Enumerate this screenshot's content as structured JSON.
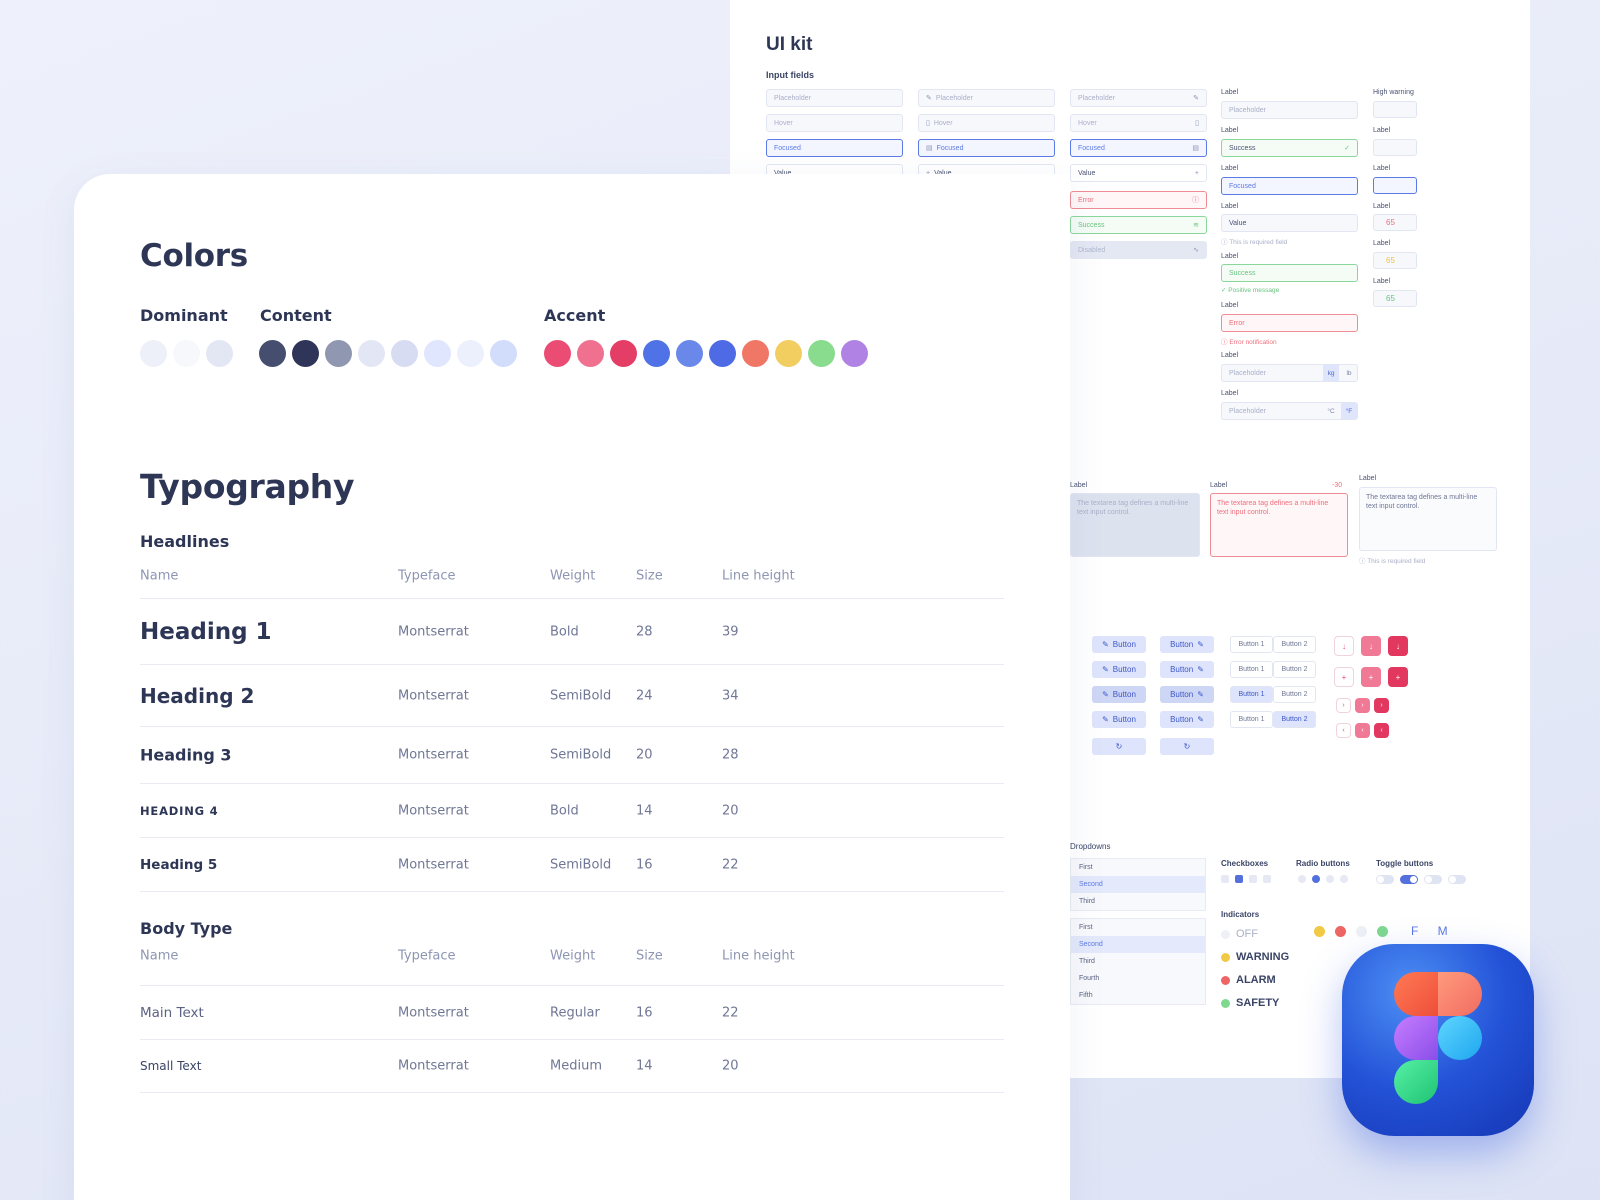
{
  "ui_kit": {
    "title": "UI kit",
    "input_fields_label": "Input fields",
    "col1": [
      "Placeholder",
      "Hover",
      "Focused",
      "Value"
    ],
    "col2": [
      "Placeholder",
      "Hover",
      "Focused",
      "Value"
    ],
    "col3": [
      "Placeholder",
      "Hover",
      "Focused",
      "Value",
      "Error",
      "Success",
      "Disabled"
    ],
    "labeled": {
      "label": "Label",
      "fields": [
        "Placeholder",
        "Success",
        "Focused",
        "Value",
        "Success",
        "Error"
      ],
      "required_hint": "This is required field",
      "positive_hint": "Positive message",
      "error_hint": "Error notification",
      "unit_placeholder": "Placeholder",
      "units1": [
        "kg",
        "lb"
      ],
      "units2": [
        "°C",
        "°F"
      ]
    },
    "high_warning": "High warning",
    "numbers": [
      "65",
      "65",
      "65"
    ],
    "textareas": {
      "text": "The textarea tag defines a multi-line text input control.",
      "disabled_text": "The textarea tag defines a multi-line text input control.",
      "counter": "-30",
      "required_hint": "This is required field"
    },
    "buttons": {
      "label": "Button",
      "group1": "Button 1",
      "group2": "Button 2",
      "spinner": "↻"
    },
    "dropdowns": {
      "title": "Dropdowns",
      "list1": [
        "First",
        "Second",
        "Third"
      ],
      "list2": [
        "First",
        "Second",
        "Third",
        "Fourth",
        "Fifth"
      ]
    },
    "checkboxes_title": "Checkboxes",
    "radio_title": "Radio buttons",
    "toggle_title": "Toggle buttons",
    "indicators": {
      "title": "Indicators",
      "off": "OFF",
      "warning": "WARNING",
      "alarm": "ALARM",
      "safety": "SAFETY",
      "letters": "F M"
    }
  },
  "colors": {
    "title": "Colors",
    "dominant_label": "Dominant",
    "content_label": "Content",
    "accent_label": "Accent",
    "dominant": [
      "#edf0f8",
      "#f7f8fc",
      "#e3e7f4"
    ],
    "content": [
      "#454e6f",
      "#2f3558",
      "#8f97b1",
      "#e3e7f5",
      "#d8dcf2",
      "#dfe6fd",
      "#ecf0fd",
      "#d2dcfb"
    ],
    "accent": [
      "#eb4c73",
      "#f07090",
      "#e53e66",
      "#4f73e6",
      "#6a87ea",
      "#4e6ae4",
      "#f07766",
      "#f2cd5f",
      "#89dc8e",
      "#b082e4"
    ]
  },
  "typography": {
    "title": "Typography",
    "headlines_label": "Headlines",
    "body_label": "Body Type",
    "columns": [
      "Name",
      "Typeface",
      "Weight",
      "Size",
      "Line height"
    ],
    "headlines": [
      {
        "name": "Heading 1",
        "typeface": "Montserrat",
        "weight": "Bold",
        "size": "28",
        "line_height": "39"
      },
      {
        "name": "Heading 2",
        "typeface": "Montserrat",
        "weight": "SemiBold",
        "size": "24",
        "line_height": "34"
      },
      {
        "name": "Heading 3",
        "typeface": "Montserrat",
        "weight": "SemiBold",
        "size": "20",
        "line_height": "28"
      },
      {
        "name": "HEADING 4",
        "typeface": "Montserrat",
        "weight": "Bold",
        "size": "14",
        "line_height": "20"
      },
      {
        "name": "Heading 5",
        "typeface": "Montserrat",
        "weight": "SemiBold",
        "size": "16",
        "line_height": "22"
      }
    ],
    "body": [
      {
        "name": "Main Text",
        "typeface": "Montserrat",
        "weight": "Regular",
        "size": "16",
        "line_height": "22"
      },
      {
        "name": "Small Text",
        "typeface": "Montserrat",
        "weight": "Medium",
        "size": "14",
        "line_height": "20"
      }
    ]
  },
  "app_icon": {
    "name": "figma-icon",
    "colors": [
      "#f26b4b",
      "#f47f6a",
      "#a16cf2",
      "#35b8f5",
      "#2fd685"
    ]
  }
}
